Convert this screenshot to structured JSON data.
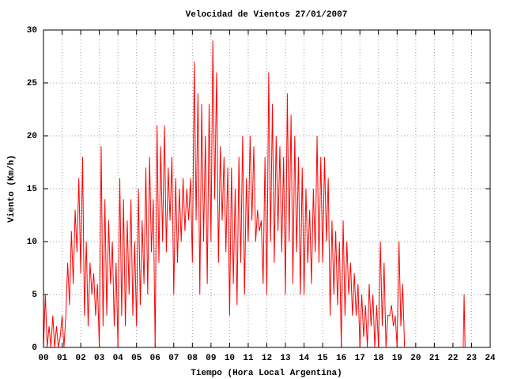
{
  "chart_data": {
    "type": "line",
    "title": "Velocidad de Vientos 27/01/2007",
    "xlabel": "Tiempo (Hora Local Argentina)",
    "ylabel": "Viento (Km/h)",
    "grid": true,
    "xlim": [
      0,
      24
    ],
    "ylim": [
      0,
      30
    ],
    "xticks": [
      {
        "value": 0,
        "label": "00"
      },
      {
        "value": 1,
        "label": "01"
      },
      {
        "value": 2,
        "label": "02"
      },
      {
        "value": 3,
        "label": "03"
      },
      {
        "value": 4,
        "label": "04"
      },
      {
        "value": 5,
        "label": "05"
      },
      {
        "value": 6,
        "label": "06"
      },
      {
        "value": 7,
        "label": "07"
      },
      {
        "value": 8,
        "label": "08"
      },
      {
        "value": 9,
        "label": "09"
      },
      10,
      11,
      12,
      13,
      14,
      15,
      16,
      17,
      18,
      19,
      20,
      21,
      22,
      23,
      24
    ],
    "yticks": [
      0,
      5,
      10,
      15,
      20,
      25,
      30
    ],
    "x": [
      0,
      0.1,
      0.2,
      0.3,
      0.4,
      0.5,
      0.6,
      0.7,
      0.8,
      0.9,
      1,
      1.1,
      1.2,
      1.3,
      1.4,
      1.5,
      1.6,
      1.7,
      1.8,
      1.9,
      2,
      2.1,
      2.2,
      2.3,
      2.4,
      2.5,
      2.6,
      2.7,
      2.8,
      2.9,
      3,
      3.1,
      3.2,
      3.3,
      3.4,
      3.5,
      3.6,
      3.7,
      3.8,
      3.9,
      4,
      4.1,
      4.2,
      4.3,
      4.4,
      4.5,
      4.6,
      4.7,
      4.8,
      4.9,
      5,
      5.1,
      5.2,
      5.3,
      5.4,
      5.5,
      5.6,
      5.7,
      5.8,
      5.9,
      6,
      6.1,
      6.2,
      6.3,
      6.4,
      6.5,
      6.6,
      6.7,
      6.8,
      6.9,
      7,
      7.1,
      7.2,
      7.3,
      7.4,
      7.5,
      7.6,
      7.7,
      7.8,
      7.9,
      8,
      8.1,
      8.2,
      8.3,
      8.4,
      8.5,
      8.6,
      8.7,
      8.8,
      8.9,
      9,
      9.1,
      9.2,
      9.3,
      9.4,
      9.5,
      9.6,
      9.7,
      9.8,
      9.9,
      10,
      10.1,
      10.2,
      10.3,
      10.4,
      10.5,
      10.6,
      10.7,
      10.8,
      10.9,
      11,
      11.1,
      11.2,
      11.3,
      11.4,
      11.5,
      11.6,
      11.7,
      11.8,
      11.9,
      12,
      12.1,
      12.2,
      12.3,
      12.4,
      12.5,
      12.6,
      12.7,
      12.8,
      12.9,
      13,
      13.1,
      13.2,
      13.3,
      13.4,
      13.5,
      13.6,
      13.7,
      13.8,
      13.9,
      14,
      14.1,
      14.2,
      14.3,
      14.4,
      14.5,
      14.6,
      14.7,
      14.8,
      14.9,
      15,
      15.1,
      15.2,
      15.3,
      15.4,
      15.5,
      15.6,
      15.7,
      15.8,
      15.9,
      16,
      16.1,
      16.2,
      16.3,
      16.4,
      16.5,
      16.6,
      16.7,
      16.8,
      16.9,
      17,
      17.1,
      17.2,
      17.3,
      17.4,
      17.5,
      17.6,
      17.7,
      17.8,
      17.9,
      18,
      18.1,
      18.2,
      18.3,
      18.4,
      18.5,
      18.6,
      18.7,
      18.8,
      18.9,
      19,
      19.1,
      19.2,
      19.3,
      19.4,
      19.5,
      22.55,
      22.6,
      22.65
    ],
    "series": [
      {
        "color": "#ff0000",
        "values": [
          0,
          5,
          0,
          2,
          0,
          3,
          0,
          2,
          0,
          1,
          3,
          0,
          3,
          8,
          4,
          11,
          6,
          13,
          9,
          16,
          7,
          18,
          3,
          10,
          2,
          8,
          5,
          7,
          3,
          6,
          0,
          19,
          2,
          14,
          3,
          12,
          6,
          10,
          2,
          8,
          0,
          16,
          3,
          14,
          2,
          12,
          5,
          14,
          3,
          10,
          2,
          15,
          4,
          12,
          6,
          17,
          5,
          18,
          9,
          14,
          0,
          21,
          8,
          19,
          10,
          21,
          9,
          17,
          12,
          18,
          5,
          16,
          8,
          15,
          10,
          16,
          11,
          15,
          12,
          16,
          8,
          27,
          12,
          24,
          5,
          23,
          10,
          20,
          6,
          23,
          10,
          29,
          14,
          26,
          8,
          19,
          12,
          18,
          9,
          17,
          3,
          17,
          6,
          15,
          4,
          18,
          8,
          20,
          5,
          16,
          10,
          20,
          12,
          19,
          10,
          13,
          11,
          12,
          6,
          18,
          5,
          26,
          10,
          23,
          8,
          20,
          11,
          19,
          9,
          18,
          5,
          24,
          10,
          22,
          6,
          20,
          9,
          18,
          5,
          17,
          5,
          15,
          8,
          13,
          6,
          15,
          9,
          20,
          8,
          18,
          8,
          18,
          10,
          16,
          3,
          12,
          5,
          11,
          4,
          10,
          0,
          12,
          3,
          10,
          5,
          8,
          3,
          7,
          3,
          6,
          0,
          5,
          1,
          4,
          0,
          6,
          2,
          5,
          0,
          4,
          0,
          10,
          2,
          8,
          0,
          3,
          3,
          4,
          2,
          3,
          0,
          10,
          2,
          6,
          0,
          0,
          0,
          5,
          0
        ]
      }
    ]
  }
}
